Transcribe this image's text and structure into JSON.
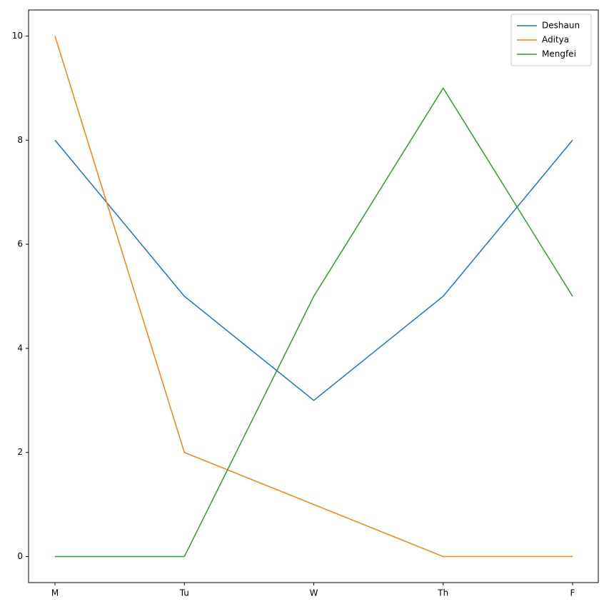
{
  "chart_data": {
    "type": "line",
    "categories": [
      "M",
      "Tu",
      "W",
      "Th",
      "F"
    ],
    "series": [
      {
        "name": "Deshaun",
        "color": "#1f77b4",
        "values": [
          8,
          5,
          3,
          5,
          8
        ]
      },
      {
        "name": "Aditya",
        "color": "#ff7f0e",
        "values": [
          10,
          2,
          1,
          0,
          0
        ]
      },
      {
        "name": "Mengfei",
        "color": "#2ca02c",
        "values": [
          0,
          0,
          5,
          9,
          5
        ]
      }
    ],
    "ylim": [
      -0.5,
      10.5
    ],
    "yticks": [
      0,
      2,
      4,
      6,
      8,
      10
    ],
    "grid": false,
    "legend": "upper right"
  }
}
